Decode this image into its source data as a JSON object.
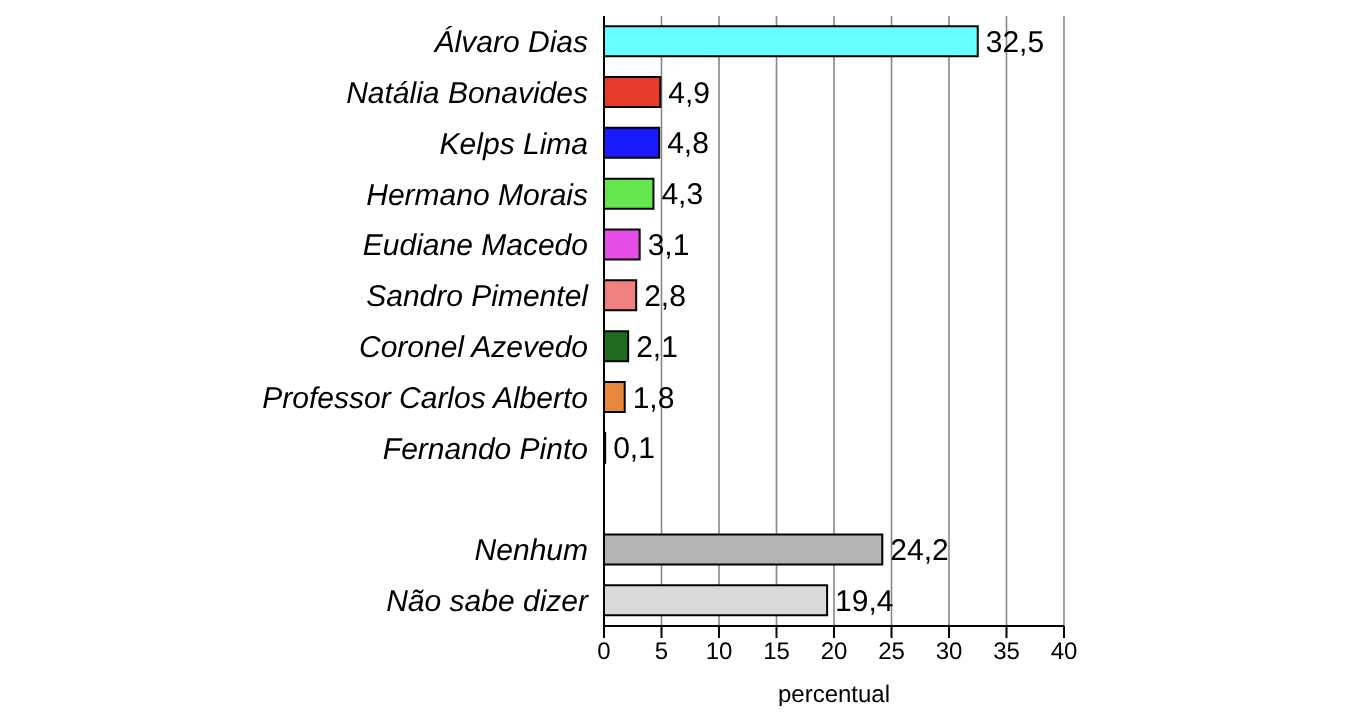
{
  "chart_data": {
    "type": "bar",
    "orientation": "horizontal",
    "xlabel": "percentual",
    "categories": [
      "Álvaro Dias",
      "Natália Bonavides",
      "Kelps Lima",
      "Hermano Morais",
      "Eudiane Macedo",
      "Sandro Pimentel",
      "Coronel Azevedo",
      "Professor Carlos Alberto",
      "Fernando Pinto",
      null,
      "Nenhum",
      "Não sabe dizer"
    ],
    "values": [
      32.5,
      4.9,
      4.8,
      4.3,
      3.1,
      2.8,
      2.1,
      1.8,
      0.1,
      null,
      24.2,
      19.4
    ],
    "value_labels": [
      "32,5",
      "4,9",
      "4,8",
      "4,3",
      "3,1",
      "2,8",
      "2,1",
      "1,8",
      "0,1",
      null,
      "24,2",
      "19,4"
    ],
    "colors": [
      "#66ffff",
      "#e83a2a",
      "#1a1aff",
      "#66e64d",
      "#e64de6",
      "#f08080",
      "#1f6b1f",
      "#e8873a",
      "#1a1a66",
      "#ffffff",
      "#b3b3b3",
      "#d9d9d9"
    ],
    "xlim": [
      0,
      40
    ],
    "xticks": [
      0,
      5,
      10,
      15,
      20,
      25,
      30,
      35,
      40
    ],
    "grid": "x"
  }
}
